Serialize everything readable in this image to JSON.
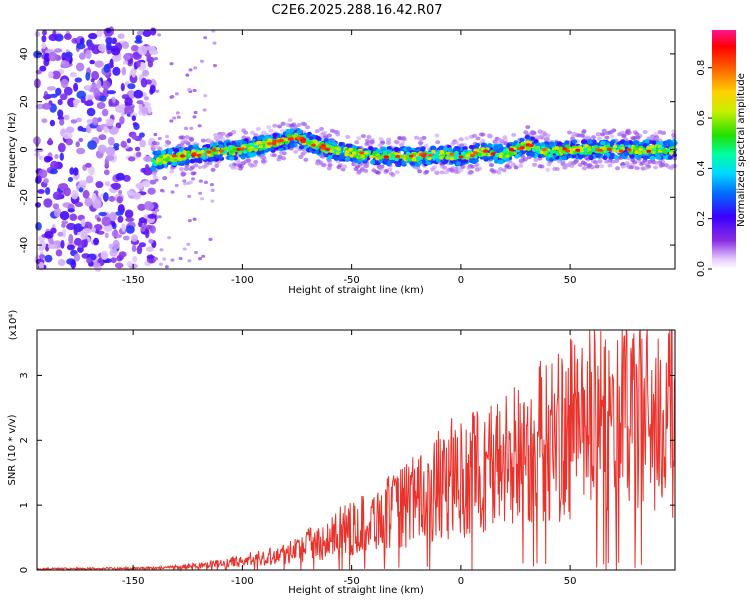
{
  "title": "C2E6.2025.288.16.42.R07",
  "chart_data": [
    {
      "type": "heatmap",
      "name": "spectrogram",
      "xlabel": "Height of straight line (km)",
      "ylabel": "Frequency (Hz)",
      "xlim": [
        -194,
        98
      ],
      "ylim": [
        -50,
        50
      ],
      "xticks": [
        -150,
        -100,
        -50,
        0,
        50
      ],
      "yticks": [
        -40,
        -20,
        0,
        20,
        40
      ],
      "colorbar": {
        "label": "Normalized spectral amplitude",
        "range": [
          0,
          0.95
        ],
        "ticks": [
          0.0,
          0.2,
          0.4,
          0.6,
          0.8
        ]
      },
      "ridge": {
        "description_points_x": [
          -141,
          -130,
          -115,
          -100,
          -90,
          -75,
          -60,
          -45,
          -30,
          -20,
          -10,
          0,
          10,
          20,
          30,
          40,
          50,
          60,
          70,
          80,
          90,
          98
        ],
        "description_points_y": [
          -5,
          -3,
          -1,
          0,
          2,
          5,
          0,
          -2,
          -3,
          -3,
          -2,
          -3,
          -1,
          -2,
          2,
          -1,
          0,
          0,
          0,
          0,
          0,
          0
        ]
      },
      "noise_region_x": [
        -194,
        -140
      ]
    },
    {
      "type": "line",
      "name": "snr",
      "xlabel": "Height of straight line (km)",
      "ylabel": "SNR (10 * v/v)",
      "y_multiplier": "(x10⁴)",
      "xlim": [
        -194,
        98
      ],
      "ylim": [
        0,
        3.7
      ],
      "xticks": [
        -150,
        -100,
        -50,
        0,
        50
      ],
      "yticks": [
        0,
        1,
        2,
        3
      ],
      "color": "#e8322c",
      "envelope_x": [
        -194,
        -140,
        -120,
        -100,
        -80,
        -60,
        -40,
        -20,
        0,
        20,
        40,
        60,
        80,
        98
      ],
      "envelope_y": [
        0.02,
        0.03,
        0.08,
        0.15,
        0.3,
        0.55,
        0.9,
        1.2,
        1.6,
        1.9,
        2.3,
        2.6,
        2.7,
        2.6
      ]
    }
  ]
}
